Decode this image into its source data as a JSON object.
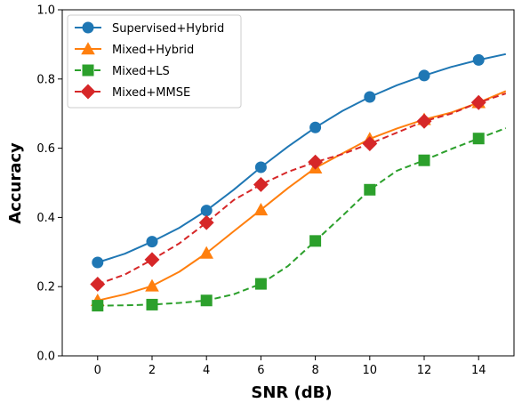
{
  "chart_data": {
    "type": "line",
    "xlabel": "SNR (dB)",
    "ylabel": "Accuracy",
    "xlim": [
      -1.3,
      15.3
    ],
    "ylim": [
      0.0,
      1.0
    ],
    "xticks": [
      0,
      2,
      4,
      6,
      8,
      10,
      12,
      14
    ],
    "xtick_labels": [
      "0",
      "2",
      "4",
      "6",
      "8",
      "10",
      "12",
      "14"
    ],
    "yticks": [
      0.0,
      0.2,
      0.4,
      0.6,
      0.8,
      1.0
    ],
    "ytick_labels": [
      "0.0",
      "0.2",
      "0.4",
      "0.6",
      "0.8",
      "1.0"
    ],
    "grid": false,
    "legend_position": "top-left",
    "x": [
      0,
      1,
      2,
      3,
      4,
      5,
      6,
      7,
      8,
      9,
      10,
      11,
      12,
      13,
      14,
      15
    ],
    "marker_x": [
      0,
      2,
      4,
      6,
      8,
      10,
      12,
      14
    ],
    "series": [
      {
        "name": "Supervised+Hybrid",
        "color": "#1f77b4",
        "line_style": "solid",
        "marker": "circle",
        "values": [
          0.27,
          0.295,
          0.33,
          0.37,
          0.42,
          0.48,
          0.545,
          0.605,
          0.66,
          0.708,
          0.748,
          0.782,
          0.81,
          0.835,
          0.855,
          0.872
        ]
      },
      {
        "name": "Mixed+Hybrid",
        "color": "#ff7f0e",
        "line_style": "solid",
        "marker": "triangle",
        "values": [
          0.16,
          0.178,
          0.202,
          0.243,
          0.297,
          0.36,
          0.422,
          0.485,
          0.543,
          0.585,
          0.627,
          0.657,
          0.683,
          0.703,
          0.732,
          0.765
        ]
      },
      {
        "name": "Mixed+LS",
        "color": "#2ca02c",
        "line_style": "dashed",
        "marker": "square",
        "values": [
          0.145,
          0.146,
          0.148,
          0.153,
          0.16,
          0.178,
          0.208,
          0.26,
          0.332,
          0.405,
          0.48,
          0.535,
          0.565,
          0.598,
          0.628,
          0.658
        ]
      },
      {
        "name": "Mixed+MMSE",
        "color": "#d62728",
        "line_style": "dashed",
        "marker": "diamond",
        "values": [
          0.207,
          0.235,
          0.278,
          0.325,
          0.385,
          0.45,
          0.495,
          0.532,
          0.56,
          0.583,
          0.613,
          0.645,
          0.678,
          0.7,
          0.732,
          0.758
        ]
      }
    ]
  }
}
